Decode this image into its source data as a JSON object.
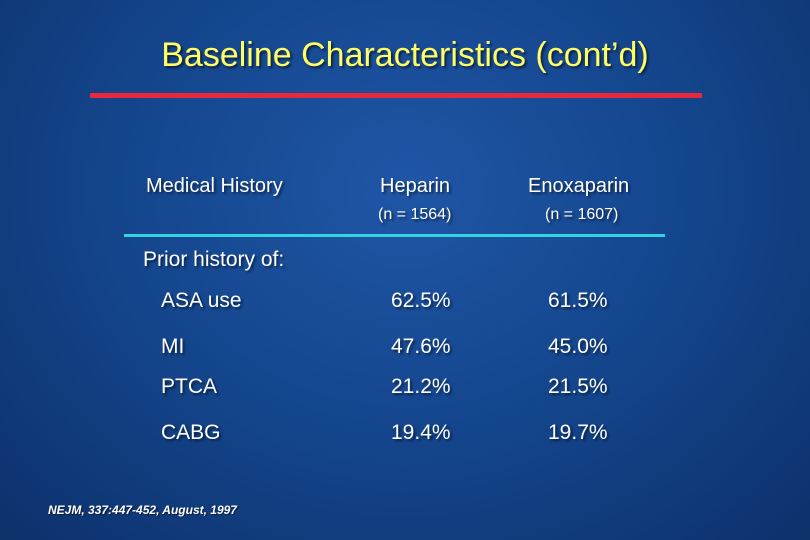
{
  "slide": {
    "title": "Baseline Characteristics (cont’d)",
    "citation": "NEJM, 337:447-452, August, 1997",
    "colors": {
      "background": "#15478f",
      "title": "#ffff66",
      "title_rule": "#e8283c",
      "header_rule": "#33d4e0"
    }
  },
  "table": {
    "column_header": "Medical History",
    "groups": [
      {
        "name": "Heparin",
        "n": "(n = 1564)"
      },
      {
        "name": "Enoxaparin",
        "n": "(n = 1607)"
      }
    ],
    "section_label": "Prior history of:",
    "rows": [
      {
        "label": "ASA use",
        "heparin": "62.5%",
        "enoxaparin": "61.5%"
      },
      {
        "label": "MI",
        "heparin": "47.6%",
        "enoxaparin": "45.0%"
      },
      {
        "label": "PTCA",
        "heparin": "21.2%",
        "enoxaparin": "21.5%"
      },
      {
        "label": "CABG",
        "heparin": "19.4%",
        "enoxaparin": "19.7%"
      }
    ]
  }
}
